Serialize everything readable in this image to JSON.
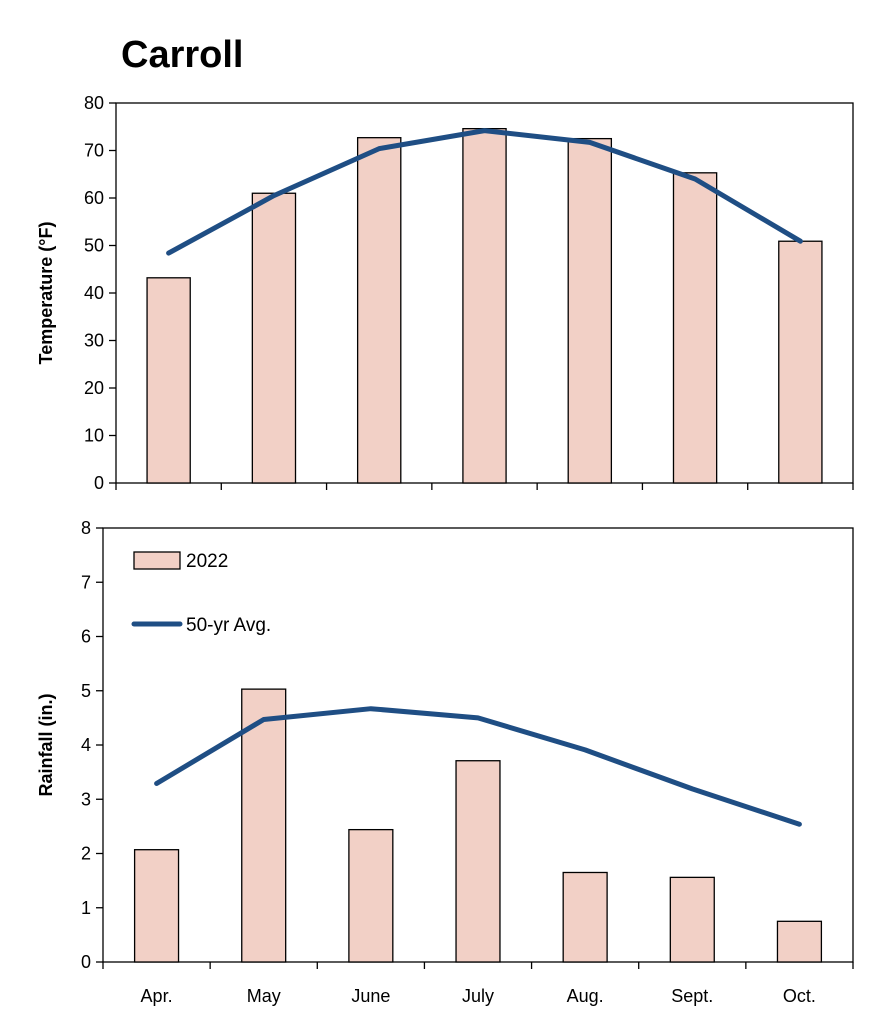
{
  "title": "Carroll",
  "colors": {
    "bar_fill": "#f2d0c6",
    "bar_stroke": "#000000",
    "line": "#1f4e84"
  },
  "legend": {
    "bars": "2022",
    "line": "50-yr Avg."
  },
  "chart_data": [
    {
      "type": "bar",
      "ylabel": "Temperature (°F)",
      "xlabel": "",
      "ylim": [
        0,
        80
      ],
      "yticks": [
        0,
        10,
        20,
        30,
        40,
        50,
        60,
        70,
        80
      ],
      "categories": [
        "Apr.",
        "May",
        "June",
        "July",
        "Aug.",
        "Sept.",
        "Oct."
      ],
      "series": [
        {
          "name": "2022",
          "kind": "bar",
          "values": [
            43.2,
            61.0,
            72.7,
            74.6,
            72.5,
            65.3,
            50.9
          ]
        },
        {
          "name": "50-yr Avg.",
          "kind": "line",
          "values": [
            48.4,
            60.5,
            70.4,
            74.2,
            71.7,
            64.0,
            50.9
          ]
        }
      ],
      "grid": false,
      "show_category_labels": false
    },
    {
      "type": "bar",
      "ylabel": "Rainfall (in.)",
      "xlabel": "",
      "ylim": [
        0,
        8
      ],
      "yticks": [
        0,
        1,
        2,
        3,
        4,
        5,
        6,
        7,
        8
      ],
      "categories": [
        "Apr.",
        "May",
        "June",
        "July",
        "Aug.",
        "Sept.",
        "Oct."
      ],
      "series": [
        {
          "name": "2022",
          "kind": "bar",
          "values": [
            2.07,
            5.03,
            2.44,
            3.71,
            1.65,
            1.56,
            0.75
          ]
        },
        {
          "name": "50-yr Avg.",
          "kind": "line",
          "values": [
            3.29,
            4.47,
            4.67,
            4.5,
            3.91,
            3.19,
            2.54
          ]
        }
      ],
      "grid": false,
      "legend_position": "top-left",
      "show_category_labels": true
    }
  ]
}
